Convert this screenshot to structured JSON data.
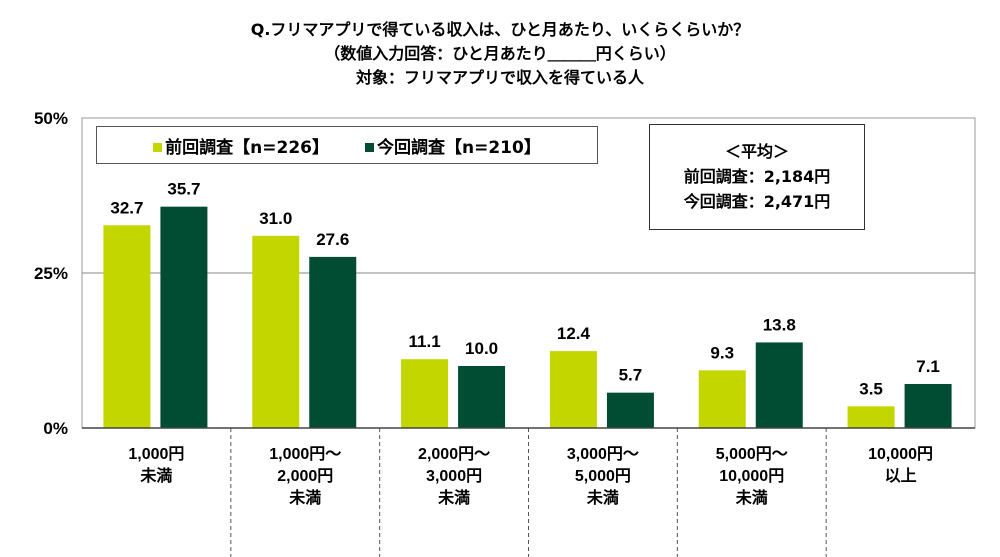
{
  "title_lines": [
    "Q.フリマアプリで得ている収入は、ひと月あたり、いくらくらいか？",
    "（数値入力回答：ひと月あたり＿＿＿円くらい）",
    "対象：フリマアプリで収入を得ている人"
  ],
  "average_box": {
    "heading": "＜平均＞",
    "lines": [
      "前回調査：2,184円",
      "今回調査：2,471円"
    ]
  },
  "colors": {
    "previous": "#c4d600",
    "current": "#004d33"
  },
  "chart_data": {
    "type": "bar",
    "categories": [
      [
        "1,000円",
        "未満"
      ],
      [
        "1,000円～",
        "2,000円",
        "未満"
      ],
      [
        "2,000円～",
        "3,000円",
        "未満"
      ],
      [
        "3,000円～",
        "5,000円",
        "未満"
      ],
      [
        "5,000円～",
        "10,000円",
        "未満"
      ],
      [
        "10,000円",
        "以上"
      ]
    ],
    "series": [
      {
        "name": "前回調査【n=226】",
        "values": [
          32.7,
          31.0,
          11.1,
          12.4,
          9.3,
          3.5
        ]
      },
      {
        "name": "今回調査【n=210】",
        "values": [
          35.7,
          27.6,
          10.0,
          5.7,
          13.8,
          7.1
        ]
      }
    ],
    "value_labels": [
      [
        "32.7",
        "31.0",
        "11.1",
        "12.4",
        "9.3",
        "3.5"
      ],
      [
        "35.7",
        "27.6",
        "10.0",
        "5.7",
        "13.8",
        "7.1"
      ]
    ],
    "yticks": [
      "0%",
      "25%",
      "50%"
    ],
    "ytick_values": [
      0,
      25,
      50
    ],
    "ylim": [
      0,
      50
    ],
    "grid": true,
    "legend": "top-left"
  }
}
